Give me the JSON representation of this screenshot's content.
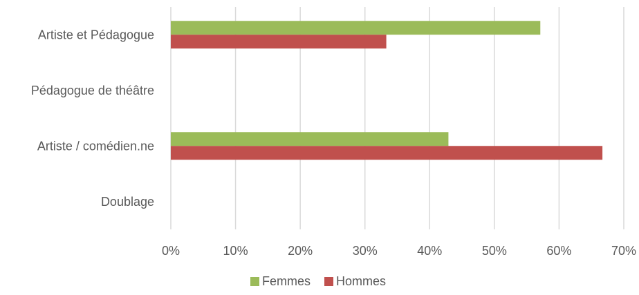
{
  "chart_data": {
    "type": "bar",
    "orientation": "horizontal",
    "categories": [
      "Artiste et Pédagogue",
      "Pédagogue de théâtre",
      "Artiste / comédien.ne",
      "Doublage"
    ],
    "series": [
      {
        "name": "Femmes",
        "values": [
          57.1,
          0,
          42.9,
          0
        ],
        "color": "#9bbb59"
      },
      {
        "name": "Hommes",
        "values": [
          33.3,
          0,
          66.7,
          0
        ],
        "color": "#c0504d"
      }
    ],
    "xlim": [
      0,
      70
    ],
    "ticks": [
      0,
      10,
      20,
      30,
      40,
      50,
      60,
      70
    ],
    "tick_labels": [
      "0%",
      "10%",
      "20%",
      "30%",
      "40%",
      "50%",
      "60%",
      "70%"
    ],
    "grid": true,
    "legend": "bottom-center",
    "title": "",
    "xlabel": "",
    "ylabel": ""
  }
}
